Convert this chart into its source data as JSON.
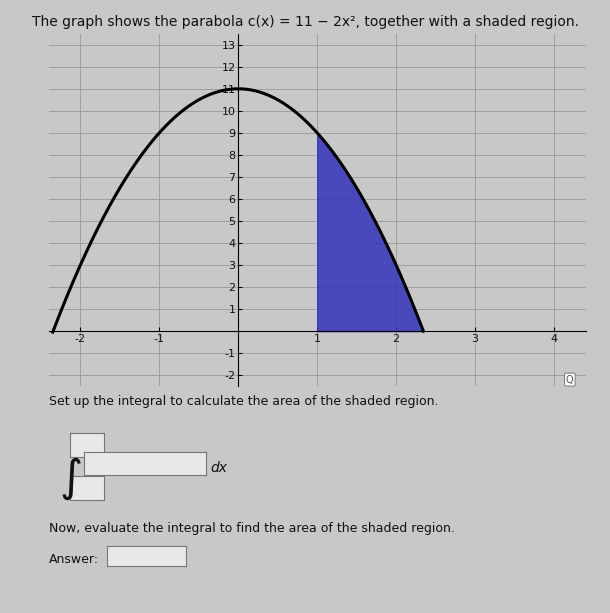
{
  "title": "The graph shows the parabola c(x) = 11 − 2x², together with a shaded region.",
  "title_fontsize": 10,
  "background_color": "#c8c8c8",
  "plot_bg_color": "#c8c8c8",
  "curve_color": "#000000",
  "shade_color": "#3333bb",
  "shade_alpha": 0.85,
  "shade_x_start": 1.0,
  "shade_x_end": 2.3452,
  "xlim": [
    -2.4,
    4.4
  ],
  "ylim": [
    -2.5,
    13.5
  ],
  "xticks": [
    -2,
    -1,
    1,
    2,
    3,
    4
  ],
  "yticks": [
    -2,
    -1,
    1,
    2,
    3,
    4,
    5,
    6,
    7,
    8,
    9,
    10,
    11,
    12,
    13
  ],
  "grid_color": "#999999",
  "grid_linewidth": 0.6,
  "curve_linewidth": 2.2,
  "text_below": "Set up the integral to calculate the area of the shaded region.",
  "text_below2": "Now, evaluate the integral to find the area of the shaded region.",
  "answer_label": "Answer:",
  "dx_label": "dx",
  "font_color": "#111111",
  "font_size_ticks": 8
}
